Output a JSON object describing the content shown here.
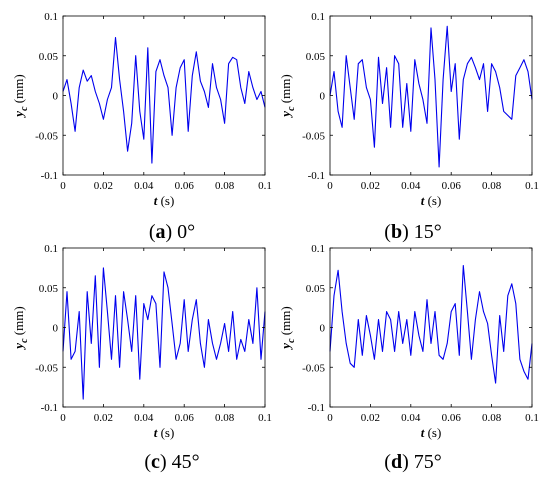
{
  "colors": {
    "series": "#0000ee",
    "axes": "#000000"
  },
  "chart_data": [
    {
      "type": "line",
      "caption_letter": "a",
      "caption_text": "0°",
      "xlabel_var": "t",
      "xlabel_unit": " (s)",
      "ylabel_var": "y",
      "ylabel_sub": "c",
      "ylabel_unit": " (mm)",
      "xlim": [
        0,
        0.1
      ],
      "ylim": [
        -0.1,
        0.1
      ],
      "xticks": [
        0,
        0.02,
        0.04,
        0.06,
        0.08,
        0.1
      ],
      "xtick_labels": [
        "0",
        "0.02",
        "0.04",
        "0.06",
        "0.08",
        "0.1"
      ],
      "yticks": [
        -0.1,
        -0.05,
        0,
        0.05,
        0.1
      ],
      "ytick_labels": [
        "-0.1",
        "-0.05",
        "0",
        "0.05",
        "0.1"
      ],
      "grid": false,
      "x": [
        0,
        0.002,
        0.004,
        0.006,
        0.008,
        0.01,
        0.012,
        0.014,
        0.016,
        0.018,
        0.02,
        0.022,
        0.024,
        0.026,
        0.028,
        0.03,
        0.032,
        0.034,
        0.036,
        0.038,
        0.04,
        0.042,
        0.044,
        0.046,
        0.048,
        0.05,
        0.052,
        0.054,
        0.056,
        0.058,
        0.06,
        0.062,
        0.064,
        0.066,
        0.068,
        0.07,
        0.072,
        0.074,
        0.076,
        0.078,
        0.08,
        0.082,
        0.084,
        0.086,
        0.088,
        0.09,
        0.092,
        0.094,
        0.096,
        0.098,
        0.1
      ],
      "y": [
        0.005,
        0.02,
        -0.01,
        -0.045,
        0.01,
        0.032,
        0.018,
        0.025,
        0.005,
        -0.01,
        -0.03,
        -0.005,
        0.01,
        0.073,
        0.02,
        -0.02,
        -0.07,
        -0.035,
        0.05,
        -0.02,
        -0.055,
        0.06,
        -0.085,
        0.03,
        0.045,
        0.025,
        0.01,
        -0.05,
        0.01,
        0.035,
        0.045,
        -0.045,
        0.025,
        0.055,
        0.018,
        0.005,
        -0.015,
        0.04,
        0.01,
        -0.005,
        -0.035,
        0.04,
        0.048,
        0.045,
        0.01,
        -0.01,
        0.03,
        0.01,
        -0.005,
        0.005,
        -0.015
      ]
    },
    {
      "type": "line",
      "caption_letter": "b",
      "caption_text": "15°",
      "xlabel_var": "t",
      "xlabel_unit": " (s)",
      "ylabel_var": "y",
      "ylabel_sub": "c",
      "ylabel_unit": " (mm)",
      "xlim": [
        0,
        0.1
      ],
      "ylim": [
        -0.1,
        0.1
      ],
      "xticks": [
        0,
        0.02,
        0.04,
        0.06,
        0.08,
        0.1
      ],
      "xtick_labels": [
        "0",
        "0.02",
        "0.04",
        "0.06",
        "0.08",
        "0.1"
      ],
      "yticks": [
        -0.1,
        -0.05,
        0,
        0.05,
        0.1
      ],
      "ytick_labels": [
        "-0.1",
        "-0.05",
        "0",
        "0.05",
        "0.1"
      ],
      "grid": false,
      "x": [
        0,
        0.002,
        0.004,
        0.006,
        0.008,
        0.01,
        0.012,
        0.014,
        0.016,
        0.018,
        0.02,
        0.022,
        0.024,
        0.026,
        0.028,
        0.03,
        0.032,
        0.034,
        0.036,
        0.038,
        0.04,
        0.042,
        0.044,
        0.046,
        0.048,
        0.05,
        0.052,
        0.054,
        0.056,
        0.058,
        0.06,
        0.062,
        0.064,
        0.066,
        0.068,
        0.07,
        0.072,
        0.074,
        0.076,
        0.078,
        0.08,
        0.082,
        0.084,
        0.086,
        0.088,
        0.09,
        0.092,
        0.094,
        0.096,
        0.098,
        0.1
      ],
      "y": [
        0,
        0.03,
        -0.02,
        -0.04,
        0.05,
        0.01,
        -0.03,
        0.04,
        0.045,
        0.01,
        -0.005,
        -0.065,
        0.048,
        -0.01,
        0.035,
        -0.04,
        0.05,
        0.04,
        -0.04,
        0.015,
        -0.045,
        0.045,
        0.015,
        -0.005,
        -0.035,
        0.085,
        0.02,
        -0.09,
        0.02,
        0.087,
        0.005,
        0.04,
        -0.055,
        0.02,
        0.04,
        0.048,
        0.035,
        0.02,
        0.04,
        -0.02,
        0.04,
        0.03,
        0.01,
        -0.02,
        -0.025,
        -0.03,
        0.025,
        0.035,
        0.045,
        0.03,
        -0.005
      ]
    },
    {
      "type": "line",
      "caption_letter": "c",
      "caption_text": "45°",
      "xlabel_var": "t",
      "xlabel_unit": " (s)",
      "ylabel_var": "y",
      "ylabel_sub": "c",
      "ylabel_unit": " (mm)",
      "xlim": [
        0,
        0.1
      ],
      "ylim": [
        -0.1,
        0.1
      ],
      "xticks": [
        0,
        0.02,
        0.04,
        0.06,
        0.08,
        0.1
      ],
      "xtick_labels": [
        "0",
        "0.02",
        "0.04",
        "0.06",
        "0.08",
        "0.1"
      ],
      "yticks": [
        -0.1,
        -0.05,
        0,
        0.05,
        0.1
      ],
      "ytick_labels": [
        "-0.1",
        "-0.05",
        "0",
        "0.05",
        "0.1"
      ],
      "grid": false,
      "x": [
        0,
        0.002,
        0.004,
        0.006,
        0.008,
        0.01,
        0.012,
        0.014,
        0.016,
        0.018,
        0.02,
        0.022,
        0.024,
        0.026,
        0.028,
        0.03,
        0.032,
        0.034,
        0.036,
        0.038,
        0.04,
        0.042,
        0.044,
        0.046,
        0.048,
        0.05,
        0.052,
        0.054,
        0.056,
        0.058,
        0.06,
        0.062,
        0.064,
        0.066,
        0.068,
        0.07,
        0.072,
        0.074,
        0.076,
        0.078,
        0.08,
        0.082,
        0.084,
        0.086,
        0.088,
        0.09,
        0.092,
        0.094,
        0.096,
        0.098,
        0.1
      ],
      "y": [
        -0.03,
        0.045,
        -0.04,
        -0.03,
        0.02,
        -0.09,
        0.045,
        -0.02,
        0.065,
        -0.05,
        0.075,
        0.02,
        -0.04,
        0.04,
        -0.05,
        0.045,
        0.01,
        -0.03,
        0.04,
        -0.065,
        0.03,
        0.01,
        0.04,
        0.03,
        -0.05,
        0.07,
        0.05,
        0.005,
        -0.04,
        -0.02,
        0.035,
        -0.03,
        0.01,
        0.035,
        -0.02,
        -0.05,
        0.01,
        -0.02,
        -0.04,
        -0.02,
        0.005,
        -0.03,
        0.02,
        -0.04,
        -0.015,
        -0.03,
        0.01,
        -0.02,
        0.05,
        -0.04,
        0.02
      ]
    },
    {
      "type": "line",
      "caption_letter": "d",
      "caption_text": "75°",
      "xlabel_var": "t",
      "xlabel_unit": " (s)",
      "ylabel_var": "y",
      "ylabel_sub": "c",
      "ylabel_unit": " (mm)",
      "xlim": [
        0,
        0.1
      ],
      "ylim": [
        -0.1,
        0.1
      ],
      "xticks": [
        0,
        0.02,
        0.04,
        0.06,
        0.08,
        0.1
      ],
      "xtick_labels": [
        "0",
        "0.02",
        "0.04",
        "0.06",
        "0.08",
        "0.1"
      ],
      "yticks": [
        -0.1,
        -0.05,
        0,
        0.05,
        0.1
      ],
      "ytick_labels": [
        "-0.1",
        "-0.05",
        "0",
        "0.05",
        "0.1"
      ],
      "grid": false,
      "x": [
        0,
        0.002,
        0.004,
        0.006,
        0.008,
        0.01,
        0.012,
        0.014,
        0.016,
        0.018,
        0.02,
        0.022,
        0.024,
        0.026,
        0.028,
        0.03,
        0.032,
        0.034,
        0.036,
        0.038,
        0.04,
        0.042,
        0.044,
        0.046,
        0.048,
        0.05,
        0.052,
        0.054,
        0.056,
        0.058,
        0.06,
        0.062,
        0.064,
        0.066,
        0.068,
        0.07,
        0.072,
        0.074,
        0.076,
        0.078,
        0.08,
        0.082,
        0.084,
        0.086,
        0.088,
        0.09,
        0.092,
        0.094,
        0.096,
        0.098,
        0.1
      ],
      "y": [
        -0.03,
        0.04,
        0.072,
        0.02,
        -0.02,
        -0.045,
        -0.05,
        0.01,
        -0.035,
        0.015,
        -0.01,
        -0.04,
        0.01,
        -0.03,
        0.02,
        0.01,
        -0.03,
        0.02,
        -0.02,
        0.01,
        -0.035,
        0.02,
        -0.01,
        -0.03,
        0.035,
        -0.02,
        0.02,
        -0.035,
        -0.04,
        -0.02,
        0.02,
        0.03,
        -0.035,
        0.078,
        0.02,
        -0.04,
        0.01,
        0.045,
        0.02,
        0.005,
        -0.035,
        -0.07,
        0.015,
        -0.03,
        0.04,
        0.055,
        0.03,
        -0.04,
        -0.055,
        -0.065,
        -0.02
      ]
    }
  ]
}
